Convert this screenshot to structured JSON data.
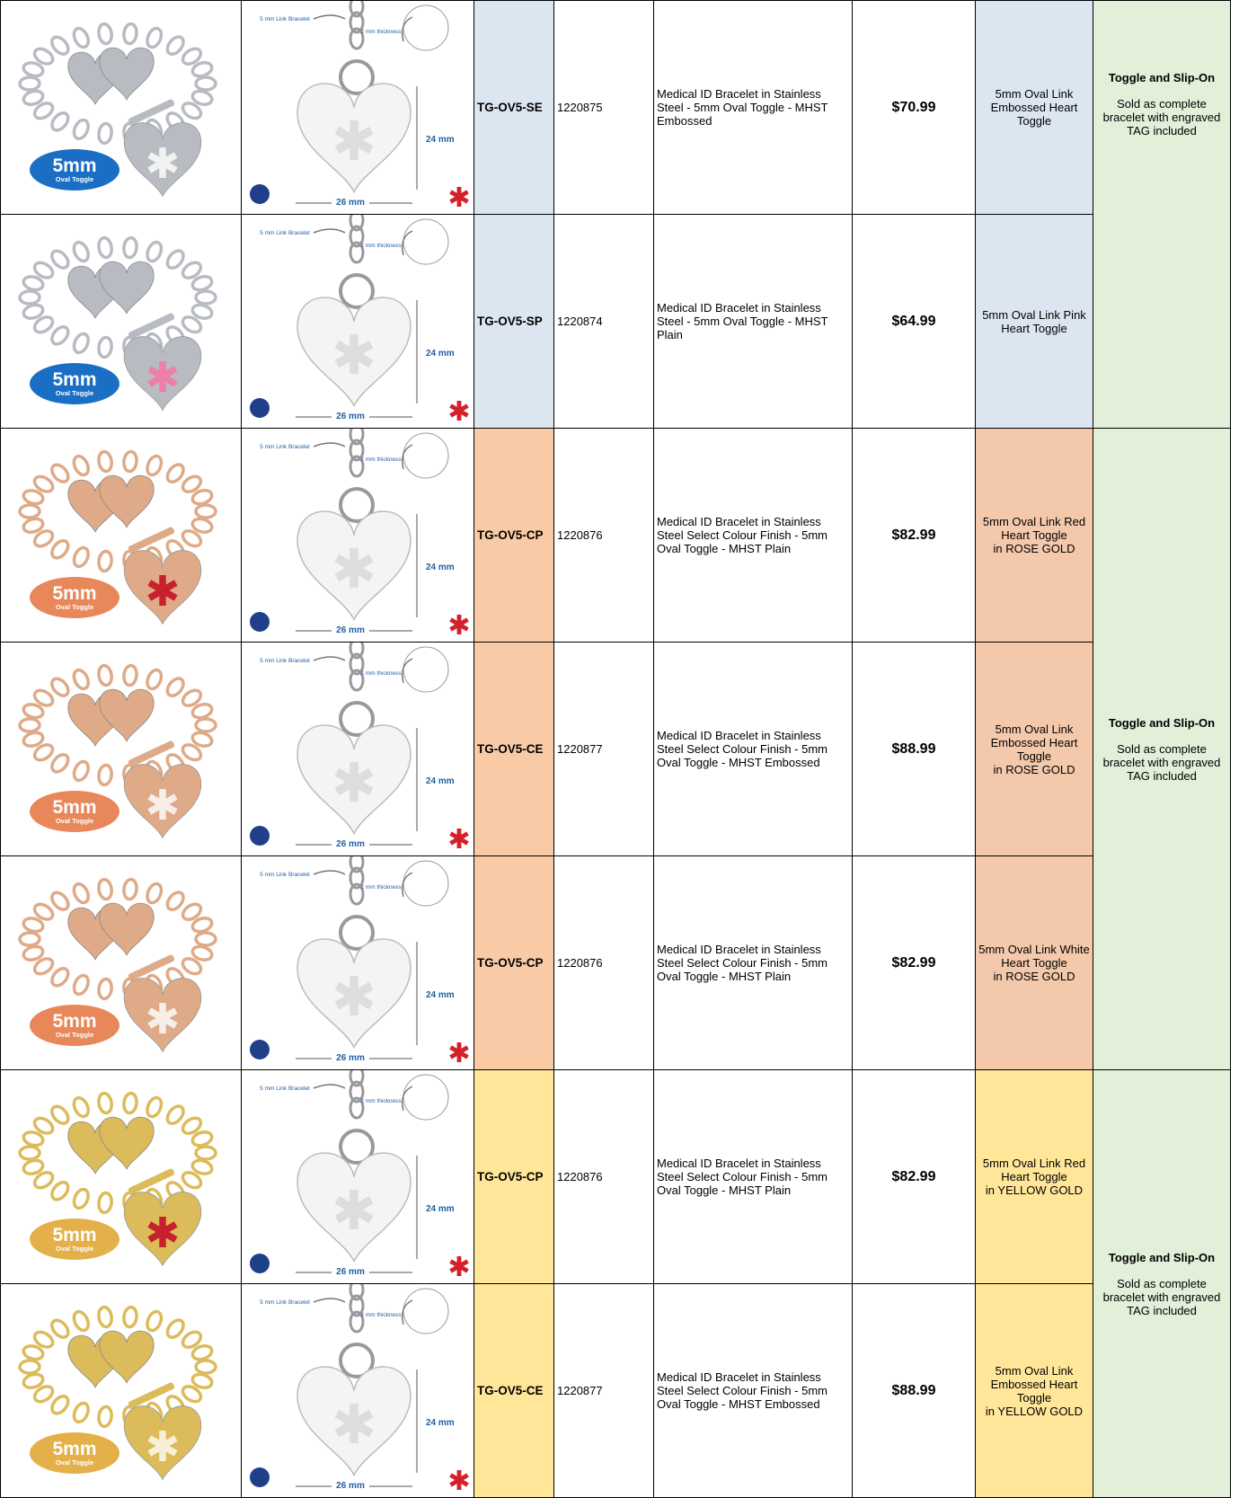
{
  "groups": [
    {
      "rows": [
        {
          "badge": {
            "size": "5mm",
            "style": "Oval Toggle"
          },
          "diagram": {
            "link": "5 mm Link Bracelet",
            "thickness": "2 mm thickness",
            "height": "24 mm",
            "width": "26 mm"
          },
          "sku": "TG-OV5-SE",
          "code": "1220875",
          "description": "Medical ID Bracelet in Stainless Steel - 5mm Oval Toggle - MHST Embossed",
          "price": "$70.99",
          "name": [
            "5mm Oval Link Embossed Heart Toggle"
          ]
        },
        {
          "badge": {
            "size": "5mm",
            "style": "Oval Toggle"
          },
          "diagram": {
            "link": "5 mm Link Bracelet",
            "thickness": "2 mm thickness",
            "height": "24 mm",
            "width": "26 mm"
          },
          "sku": "TG-OV5-SP",
          "code": "1220874",
          "description": "Medical ID Bracelet in Stainless Steel - 5mm Oval Toggle - MHST Plain",
          "price": "$64.99",
          "name": [
            "5mm Oval Link Pink Heart Toggle"
          ]
        }
      ],
      "note": {
        "title": "Toggle and Slip-On",
        "text": "Sold as complete bracelet with engraved TAG included"
      }
    },
    {
      "rows": [
        {
          "badge": {
            "size": "5mm",
            "style": "Oval Toggle"
          },
          "diagram": {
            "link": "5 mm Link Bracelet",
            "thickness": "2 mm thickness",
            "height": "24 mm",
            "width": "26 mm"
          },
          "sku": "TG-OV5-CP",
          "code": "1220876",
          "description": "Medical ID Bracelet in Stainless Steel Select Colour Finish - 5mm Oval Toggle - MHST Plain",
          "price": "$82.99",
          "name": [
            "5mm Oval Link Red Heart Toggle",
            "in ROSE GOLD"
          ]
        },
        {
          "badge": {
            "size": "5mm",
            "style": "Oval Toggle"
          },
          "diagram": {
            "link": "5 mm Link Bracelet",
            "thickness": "2 mm thickness",
            "height": "24 mm",
            "width": "26 mm"
          },
          "sku": "TG-OV5-CE",
          "code": "1220877",
          "description": "Medical ID Bracelet in Stainless Steel Select Colour Finish - 5mm Oval Toggle - MHST Embossed",
          "price": "$88.99",
          "name": [
            "5mm Oval Link Embossed Heart Toggle",
            "in ROSE GOLD"
          ]
        },
        {
          "badge": {
            "size": "5mm",
            "style": "Oval Toggle"
          },
          "diagram": {
            "link": "5 mm Link Bracelet",
            "thickness": "2 mm thickness",
            "height": "24 mm",
            "width": "26 mm"
          },
          "sku": "TG-OV5-CP",
          "code": "1220876",
          "description": "Medical ID Bracelet in Stainless Steel Select Colour Finish - 5mm Oval Toggle - MHST Plain",
          "price": "$82.99",
          "name": [
            "5mm Oval Link White Heart Toggle",
            "in ROSE GOLD"
          ]
        }
      ],
      "note": {
        "title": "Toggle and Slip-On",
        "text": "Sold as complete bracelet with engraved TAG included"
      }
    },
    {
      "rows": [
        {
          "badge": {
            "size": "5mm",
            "style": "Oval Toggle"
          },
          "diagram": {
            "link": "5 mm Link Bracelet",
            "thickness": "2 mm thickness",
            "height": "24 mm",
            "width": "26 mm"
          },
          "sku": "TG-OV5-CP",
          "code": "1220876",
          "description": "Medical ID Bracelet in Stainless Steel Select Colour Finish - 5mm Oval Toggle - MHST Plain",
          "price": "$82.99",
          "name": [
            "5mm Oval Link Red Heart Toggle",
            "in YELLOW GOLD"
          ]
        },
        {
          "badge": {
            "size": "5mm",
            "style": "Oval Toggle"
          },
          "diagram": {
            "link": "5 mm Link Bracelet",
            "thickness": "2 mm thickness",
            "height": "24 mm",
            "width": "26 mm"
          },
          "sku": "TG-OV5-CE",
          "code": "1220877",
          "description": "Medical ID Bracelet in Stainless Steel Select Colour Finish - 5mm Oval Toggle - MHST Embossed",
          "price": "$88.99",
          "name": [
            "5mm Oval Link Embossed Heart Toggle",
            "in YELLOW GOLD"
          ]
        }
      ],
      "note": {
        "title": "Toggle and Slip-On",
        "text": "Sold as complete bracelet with engraved TAG included"
      }
    }
  ]
}
